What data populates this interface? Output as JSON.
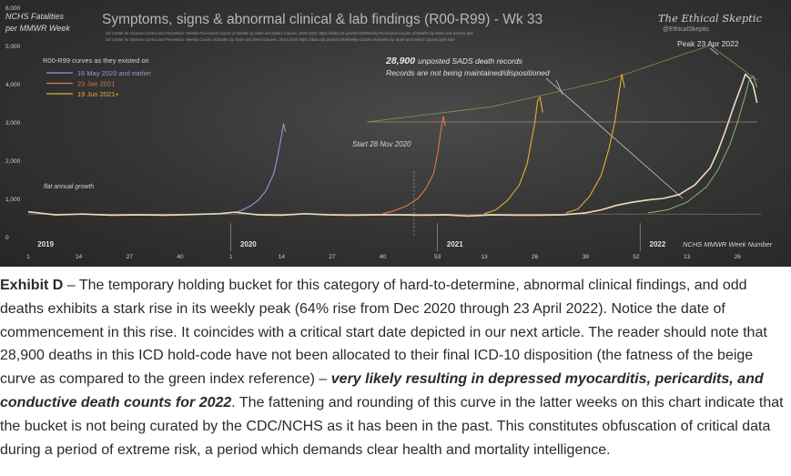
{
  "chart_data": {
    "type": "line",
    "title": "Symptoms, signs & abnormal clinical & lab findings (R00-R99) - Wk 33",
    "ylabel": "NCHS Fatalities per MMWR Week",
    "xlabel": "NCHS MMWR Week Number",
    "sources": [
      "US Center for Disease Control and Prevention: Weekly Provisional Counts of Deaths by State and Select Causes, 2020-2022; https://data.cdc.gov/NCHS/Weekly-Provisional-Counts-of-Deaths-by-State-and-S/muzy-jte6",
      "US Center for Disease Control and Prevention: Weekly Counts of Deaths by State and Select Causes, 2014-2019; https://data.cdc.gov/NCHS/Weekly-Counts-of-Deaths-by-State-and-Select-Causes/3yf8-kanr"
    ],
    "brand": "The Ethical Skeptic",
    "brand_handle": "@EthicalSkeptic",
    "ylim": [
      0,
      6000
    ],
    "y_ticks": [
      "6,000",
      "5,000",
      "4,000",
      "3,000",
      "2,000",
      "1,000",
      "0"
    ],
    "x_ticks": [
      {
        "week": 1,
        "label": "1"
      },
      {
        "week": 14,
        "label": "14"
      },
      {
        "week": 27,
        "label": "27"
      },
      {
        "week": 40,
        "label": "40"
      },
      {
        "week": 53,
        "label": "1"
      },
      {
        "week": 66,
        "label": "14"
      },
      {
        "week": 79,
        "label": "27"
      },
      {
        "week": 92,
        "label": "40"
      },
      {
        "week": 106,
        "label": "53"
      },
      {
        "week": 118,
        "label": "13"
      },
      {
        "week": 131,
        "label": "26"
      },
      {
        "week": 144,
        "label": "39"
      },
      {
        "week": 157,
        "label": "52"
      },
      {
        "week": 170,
        "label": "13"
      },
      {
        "week": 183,
        "label": "26"
      }
    ],
    "year_labels": [
      {
        "week": 2,
        "label": "2019"
      },
      {
        "week": 54,
        "label": "2020"
      },
      {
        "week": 107,
        "label": "2021"
      },
      {
        "week": 159,
        "label": "2022"
      }
    ],
    "legend_title": "R00-R99 curves as they existed on",
    "legend": [
      {
        "label": "16 May 2020 and earlier",
        "color": "#8f9ad6"
      },
      {
        "label": "23 Jan 2021",
        "color": "#e0794a"
      },
      {
        "label": "19 Jun 2021+",
        "color": "#e0b030"
      }
    ],
    "annotations": {
      "sads_count": "28,900",
      "sads_text": "unposted SADS death records",
      "sads_line2": "Records are not being maintained/dispositioned",
      "peak": "Peak 23 Apr 2022",
      "start": "Start 28 Nov 2020",
      "flat": "flat annual growth"
    },
    "series": [
      {
        "name": "16 May 2020 and earlier",
        "color": "#8f9ad6",
        "x": [
          54,
          56,
          58,
          60,
          62,
          64,
          65,
          66,
          66.5,
          67
        ],
        "y": [
          620,
          700,
          800,
          950,
          1200,
          1650,
          2100,
          2650,
          2950,
          2750
        ]
      },
      {
        "name": "23 Jan 2021",
        "color": "#e0794a",
        "x": [
          92,
          95,
          98,
          101,
          103,
          105,
          106,
          107,
          107.5,
          108
        ],
        "y": [
          600,
          680,
          800,
          1000,
          1250,
          1650,
          2150,
          2850,
          3150,
          2900
        ]
      },
      {
        "name": "19 Jun 2021+",
        "color": "#e0b030",
        "x": [
          118,
          121,
          124,
          127,
          129,
          130,
          131,
          131.7,
          132.3,
          133
        ],
        "y": [
          600,
          700,
          950,
          1350,
          1900,
          2450,
          3000,
          3550,
          3650,
          3250
        ]
      },
      {
        "name": "19 Jun 2021+",
        "color": "#e0b030",
        "x": [
          139,
          142,
          145,
          148,
          150,
          151.5,
          152.5,
          153.3,
          154
        ],
        "y": [
          620,
          720,
          1050,
          1600,
          2300,
          3000,
          3700,
          4250,
          3900
        ]
      },
      {
        "color": "#f0d8c0",
        "x": [
          1,
          8,
          15,
          22,
          29,
          36,
          43,
          50,
          54,
          60,
          66,
          72,
          78,
          84,
          90,
          96,
          102,
          108,
          114,
          120,
          126,
          132,
          138,
          144,
          148,
          152,
          156,
          160,
          164,
          168,
          172,
          176,
          178,
          180,
          182,
          184,
          185,
          186,
          187,
          188
        ],
        "y": [
          650,
          570,
          590,
          560,
          570,
          560,
          580,
          600,
          640,
          570,
          560,
          600,
          570,
          560,
          570,
          570,
          560,
          570,
          540,
          570,
          560,
          560,
          570,
          620,
          700,
          820,
          900,
          960,
          1000,
          1100,
          1350,
          1800,
          2250,
          2800,
          3400,
          3950,
          4250,
          4150,
          3950,
          3500
        ]
      },
      {
        "color": "#7fae6b",
        "x": [
          160,
          165,
          170,
          175,
          178,
          181,
          183,
          185,
          186,
          187,
          188
        ],
        "y": [
          620,
          700,
          900,
          1300,
          1750,
          2400,
          3000,
          3700,
          4100,
          4200,
          3900
        ]
      }
    ]
  },
  "caption": {
    "lead": "Exhibit D",
    "part1": " – The temporary holding bucket for this category of hard-to-determine, abnormal clinical findings, and odd deaths exhibits a stark rise in its weekly peak (64% rise from Dec 2020 through 23 April 2022). Notice the date of commencement in this rise. It coincides with a critical start date depicted in our next article. The reader should note that 28,900 deaths in this ICD hold-code have not been allocated to their final ICD-10 disposition (the fatness of the beige curve as compared to the green index reference) – ",
    "emph": "very likely resulting in depressed myocarditis, pericardits, and conductive death counts for 2022",
    "part2": ". The fattening and rounding of this curve in the latter weeks on this chart indicate that the bucket is not being curated by the CDC/NCHS as it has been in the past. This constitutes obfuscation of critical data during a period of extreme risk, a period which demands clear health and mortality intelligence."
  }
}
